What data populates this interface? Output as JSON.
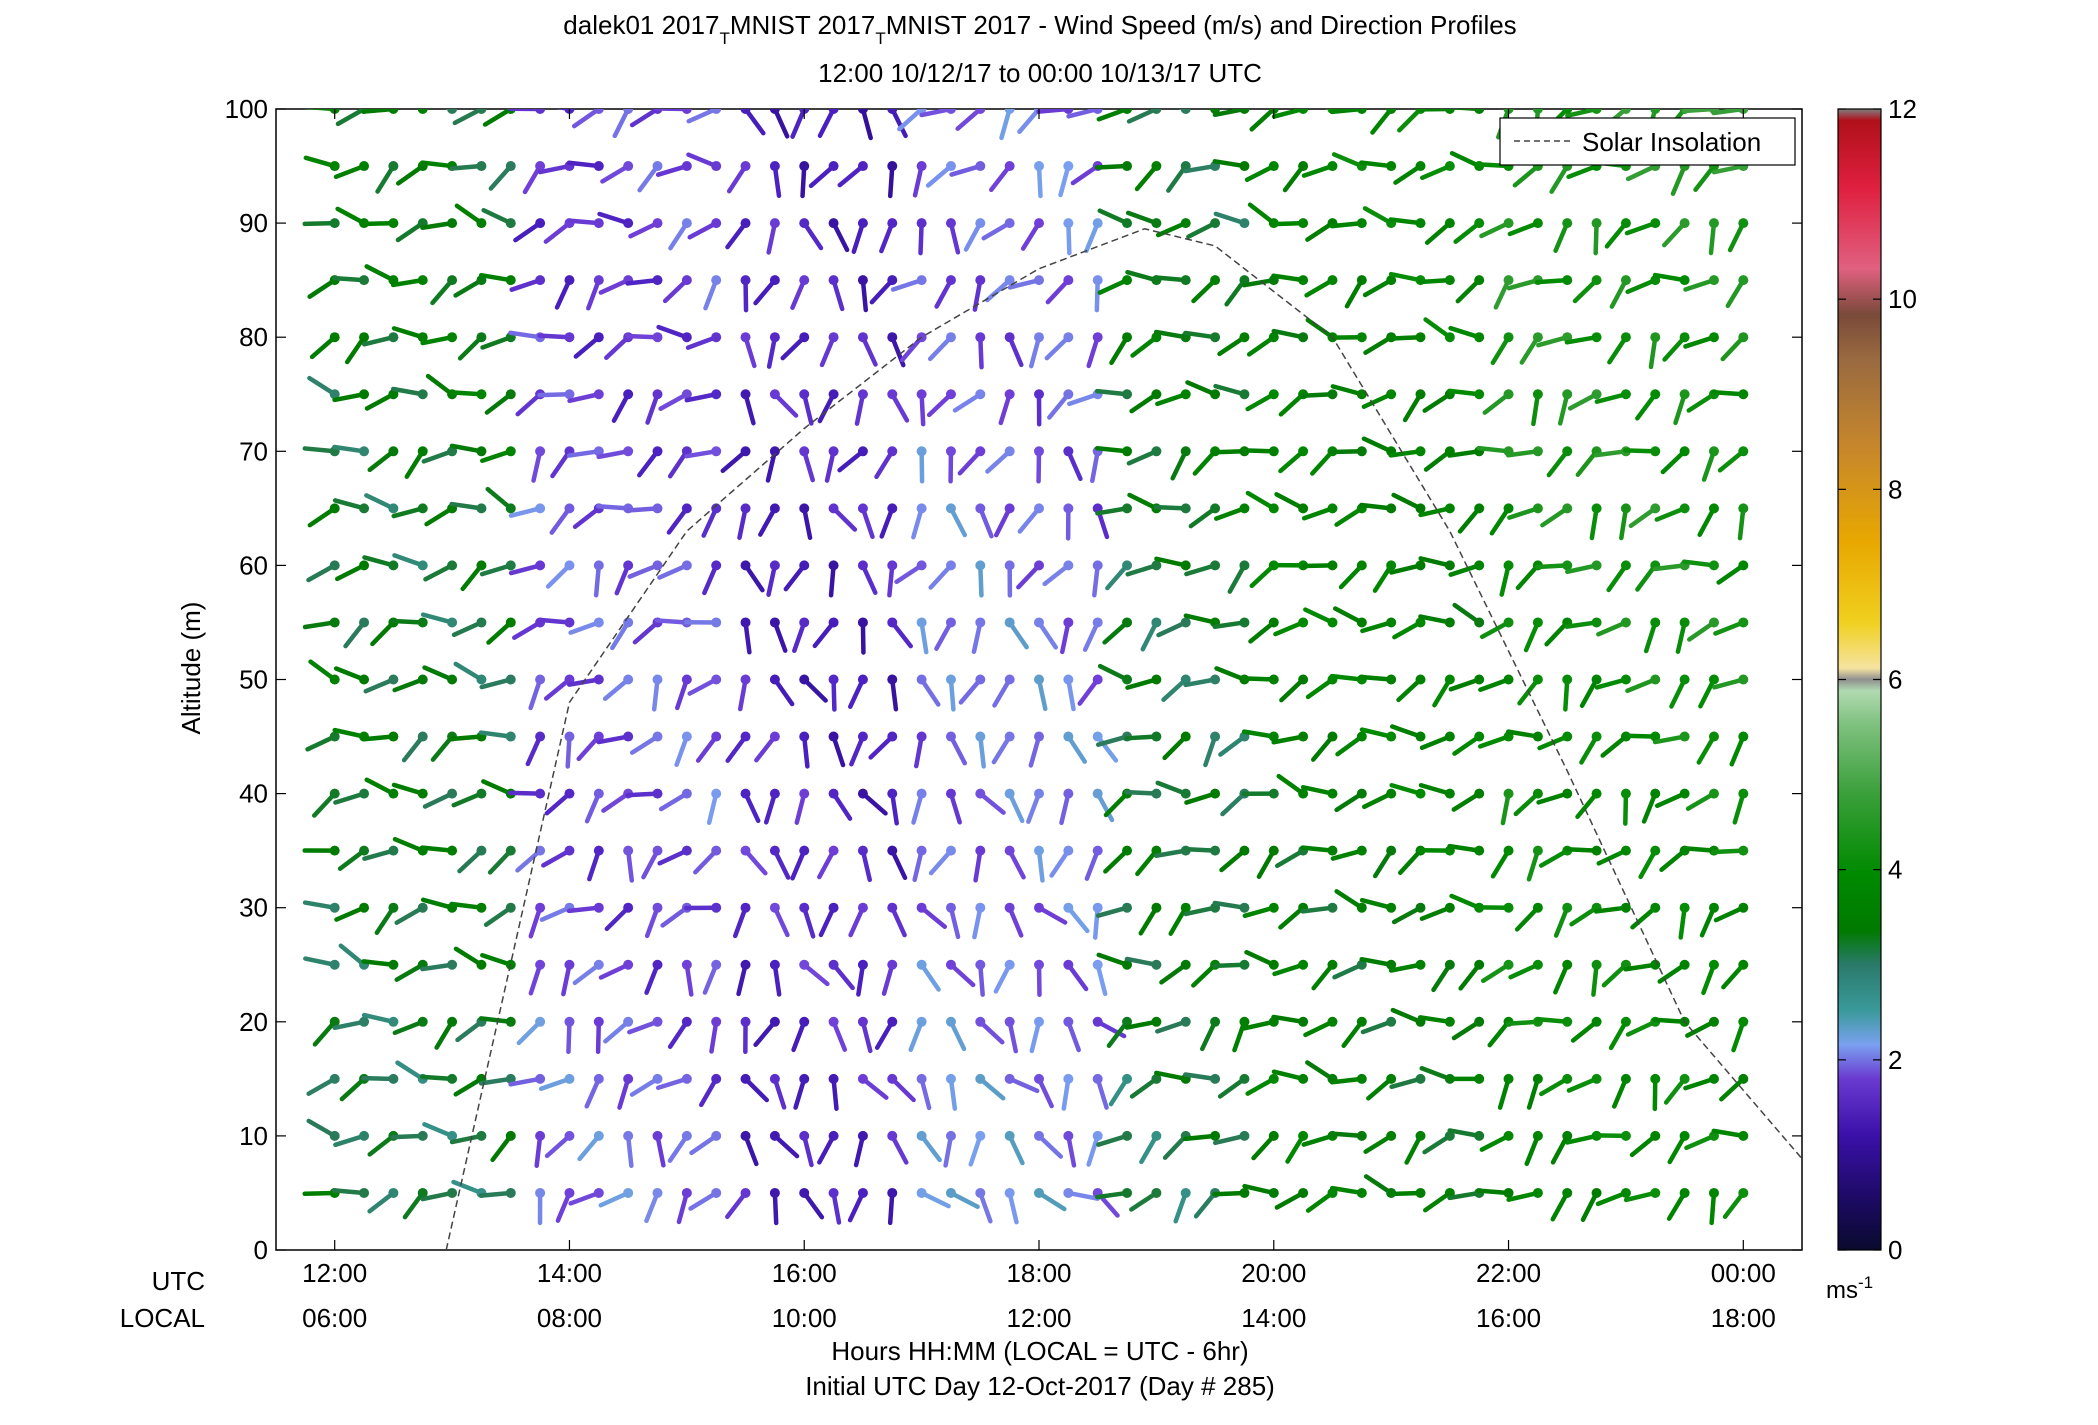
{
  "chart_data": {
    "type": "wind_barb_profile",
    "title_line1_parts": [
      "dalek01 2017",
      "T",
      "MNIST 2017",
      "T",
      "MNIST 2017 - Wind Speed (m/s) and Direction Profiles"
    ],
    "title_line2": "12:00 10/12/17 to 00:00 10/13/17  UTC",
    "ylabel": "Altitude (m)",
    "ylim": [
      0,
      100
    ],
    "yticks": [
      0,
      10,
      20,
      30,
      40,
      50,
      60,
      70,
      80,
      90,
      100
    ],
    "xlim_hours": [
      11.5,
      24.5
    ],
    "xticks_hours": [
      12,
      14,
      16,
      18,
      20,
      22,
      24
    ],
    "utc_label": "UTC",
    "local_label": "LOCAL",
    "utc_ticks": [
      "12:00",
      "14:00",
      "16:00",
      "18:00",
      "20:00",
      "22:00",
      "00:00"
    ],
    "local_ticks": [
      "06:00",
      "08:00",
      "10:00",
      "12:00",
      "14:00",
      "16:00",
      "18:00"
    ],
    "xlabel_line1": "Hours HH:MM  (LOCAL = UTC - 6hr)",
    "xlabel_line2": "Initial UTC Day 12-Oct-2017 (Day # 285)",
    "legend": {
      "label": "Solar Insolation",
      "placement": "top-right",
      "style": "dashed"
    },
    "colorbar": {
      "range": [
        0,
        12
      ],
      "ticks": [
        0,
        2,
        4,
        6,
        8,
        10,
        12
      ],
      "unit_base": "ms",
      "unit_exp": "-1"
    },
    "solar_insolation_curve": {
      "hour": [
        12.95,
        14.0,
        15.0,
        16.0,
        17.0,
        18.0,
        18.9,
        19.5,
        20.5,
        21.5,
        22.5,
        23.5,
        24.5
      ],
      "altitude": [
        0,
        48,
        63,
        72,
        80,
        86,
        89.5,
        88,
        80,
        63,
        42,
        20,
        8
      ]
    },
    "profile_altitudes_m": [
      5,
      10,
      15,
      20,
      25,
      30,
      35,
      40,
      45,
      50,
      55,
      60,
      65,
      70,
      75,
      80,
      85,
      90,
      95,
      100
    ],
    "sample_hours": [
      12.0,
      12.25,
      12.5,
      12.75,
      13.0,
      13.25,
      13.5,
      13.75,
      14.0,
      14.25,
      14.5,
      14.75,
      15.0,
      15.25,
      15.5,
      15.75,
      16.0,
      16.25,
      16.5,
      16.75,
      17.0,
      17.25,
      17.5,
      17.75,
      18.0,
      18.25,
      18.5,
      18.75,
      19.0,
      19.25,
      19.5,
      19.75,
      20.0,
      20.25,
      20.5,
      20.75,
      21.0,
      21.25,
      21.5,
      21.75,
      22.0,
      22.25,
      22.5,
      22.75,
      23.0,
      23.25,
      23.5,
      23.75,
      24.0
    ],
    "wind_segments": [
      {
        "from_hour": 12.0,
        "to_hour": 13.75,
        "low": {
          "speed": 3.0,
          "dir": 260
        },
        "high": {
          "speed": 3.2,
          "dir": 260
        }
      },
      {
        "from_hour": 13.75,
        "to_hour": 15.5,
        "low": {
          "speed": 1.8,
          "dir": 210
        },
        "high": {
          "speed": 1.6,
          "dir": 250
        }
      },
      {
        "from_hour": 15.5,
        "to_hour": 17.0,
        "low": {
          "speed": 1.4,
          "dir": 170
        },
        "high": {
          "speed": 1.3,
          "dir": 190
        }
      },
      {
        "from_hour": 17.0,
        "to_hour": 18.75,
        "low": {
          "speed": 2.0,
          "dir": 150
        },
        "high": {
          "speed": 1.8,
          "dir": 220
        }
      },
      {
        "from_hour": 18.75,
        "to_hour": 20.0,
        "low": {
          "speed": 3.0,
          "dir": 240
        },
        "high": {
          "speed": 3.2,
          "dir": 260
        }
      },
      {
        "from_hour": 20.0,
        "to_hour": 22.0,
        "low": {
          "speed": 3.3,
          "dir": 255
        },
        "high": {
          "speed": 3.6,
          "dir": 260
        }
      },
      {
        "from_hour": 22.0,
        "to_hour": 24.0,
        "low": {
          "speed": 3.6,
          "dir": 230
        },
        "high": {
          "speed": 4.2,
          "dir": 230
        }
      }
    ]
  },
  "colors": {
    "axis": "#000000",
    "solar_curve": "#444444",
    "missing": "#808080"
  }
}
